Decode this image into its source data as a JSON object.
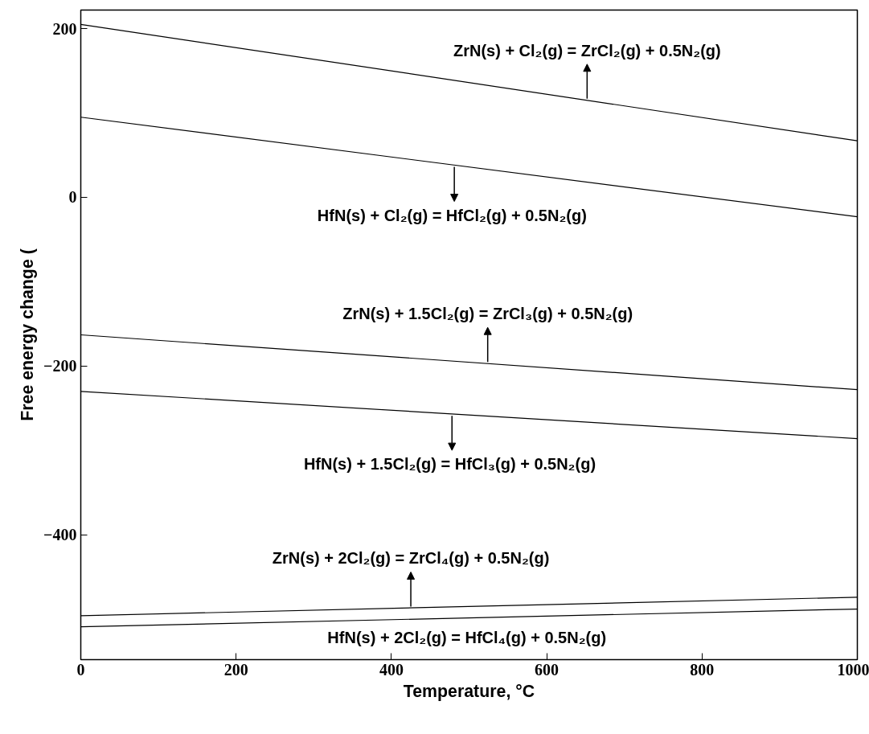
{
  "chart_data": {
    "type": "line",
    "xlabel": "Temperature, °C",
    "ylabel": "Free energy change (",
    "xlim": [
      0,
      1000
    ],
    "xticks": [
      0,
      200,
      400,
      600,
      800,
      1000
    ],
    "ylim": [
      -548,
      222
    ],
    "yticks": [
      -400,
      -200,
      0,
      200
    ],
    "grid": false,
    "marker": "none",
    "line_style": "solid",
    "x": [
      0,
      1000
    ],
    "series": [
      {
        "color": "#000000",
        "values": [
          205,
          67
        ]
      },
      {
        "color": "#000000",
        "values": [
          95,
          -23
        ]
      },
      {
        "color": "#000000",
        "values": [
          -163,
          -228
        ]
      },
      {
        "color": "#000000",
        "values": [
          -230,
          -286
        ]
      },
      {
        "color": "#000000",
        "values": [
          -496,
          -474
        ]
      },
      {
        "color": "#000000",
        "values": [
          -509,
          -488
        ]
      }
    ],
    "annotations": [
      {
        "text": "ZrN(s) + Cl₂(g) = ZrCl₂(g) + 0.5N₂(g)",
        "x": 652,
        "y": 115
      },
      {
        "text": "HfN(s) + Cl₂(g) =  HfCl₂(g) + 0.5N₂(g)",
        "x": 481,
        "y": 38
      },
      {
        "text": "ZrN(s) + 1.5Cl₂(g) = ZrCl₃(g) + 0.5N₂(g)",
        "x": 524,
        "y": -197
      },
      {
        "text": "HfN(s) + 1.5Cl₂(g) =  HfCl₃(g) + 0.5N₂(g)",
        "x": 478,
        "y": -257
      },
      {
        "text": "ZrN(s) + 2Cl₂(g) = ZrCl₄(g) + 0.5N₂(g)",
        "x": 425,
        "y": -487
      },
      "HfN(s) + 2Cl₂(g) =  HfCl₄(g) + 0.5N₂(g)"
    ]
  }
}
